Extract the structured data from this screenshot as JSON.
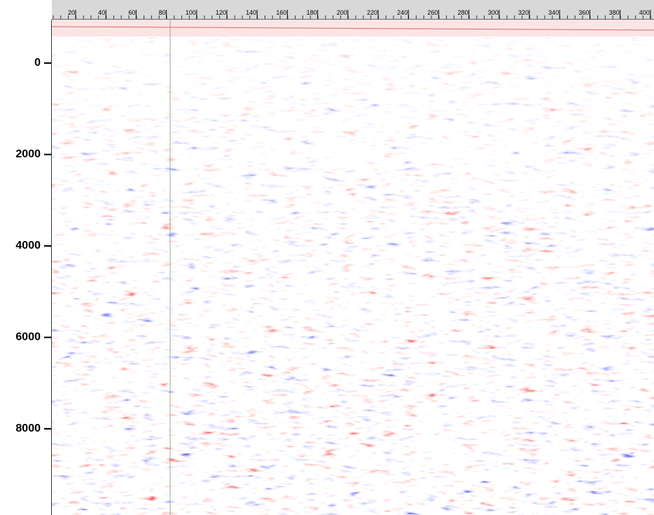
{
  "top_ruler": {
    "labels": [
      20,
      40,
      60,
      80,
      100,
      120,
      140,
      160,
      180,
      200,
      220,
      240,
      260,
      280,
      300,
      320,
      340,
      360,
      380,
      400
    ]
  },
  "left_axis": {
    "labels": [
      0,
      2000,
      4000,
      6000,
      8000
    ]
  }
}
